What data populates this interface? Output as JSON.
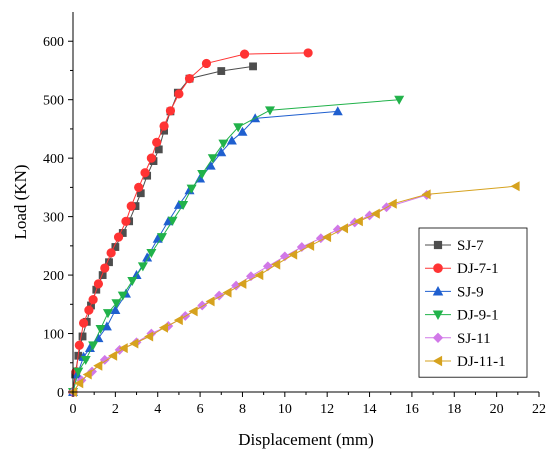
{
  "chart_data": {
    "type": "line",
    "title": "",
    "xlabel": "Displacement (mm)",
    "ylabel": "Load (KN)",
    "xlim": [
      0,
      22
    ],
    "ylim": [
      0,
      650
    ],
    "xticks": [
      0,
      2,
      4,
      6,
      8,
      10,
      12,
      14,
      16,
      18,
      20,
      22
    ],
    "yticks": [
      0,
      100,
      200,
      300,
      400,
      500,
      600
    ],
    "grid": false,
    "legend_position": "bottom-right",
    "series": [
      {
        "name": "SJ-7",
        "color": "#4d4d4d",
        "marker": "square",
        "points": [
          [
            0,
            0
          ],
          [
            0.1,
            30
          ],
          [
            0.25,
            62
          ],
          [
            0.45,
            95
          ],
          [
            0.65,
            120
          ],
          [
            0.85,
            148
          ],
          [
            1.1,
            175
          ],
          [
            1.4,
            200
          ],
          [
            1.7,
            222
          ],
          [
            2.0,
            248
          ],
          [
            2.35,
            272
          ],
          [
            2.65,
            292
          ],
          [
            2.95,
            318
          ],
          [
            3.2,
            340
          ],
          [
            3.5,
            370
          ],
          [
            3.8,
            395
          ],
          [
            4.05,
            415
          ],
          [
            4.3,
            447
          ],
          [
            4.6,
            480
          ],
          [
            4.95,
            512
          ],
          [
            5.5,
            536
          ],
          [
            7.0,
            549
          ],
          [
            8.5,
            557
          ]
        ]
      },
      {
        "name": "DJ-7-1",
        "color": "#ff3333",
        "marker": "circle",
        "points": [
          [
            0,
            0
          ],
          [
            0.15,
            35
          ],
          [
            0.3,
            80
          ],
          [
            0.5,
            118
          ],
          [
            0.75,
            140
          ],
          [
            0.95,
            158
          ],
          [
            1.2,
            185
          ],
          [
            1.5,
            212
          ],
          [
            1.8,
            238
          ],
          [
            2.15,
            265
          ],
          [
            2.5,
            292
          ],
          [
            2.75,
            318
          ],
          [
            3.1,
            350
          ],
          [
            3.4,
            375
          ],
          [
            3.7,
            400
          ],
          [
            3.95,
            427
          ],
          [
            4.3,
            455
          ],
          [
            4.6,
            481
          ],
          [
            5.0,
            510
          ],
          [
            5.5,
            536
          ],
          [
            6.3,
            562
          ],
          [
            8.1,
            578
          ],
          [
            11.1,
            580
          ]
        ]
      },
      {
        "name": "SJ-9",
        "color": "#1f5fcf",
        "marker": "triangle-up",
        "points": [
          [
            0,
            0
          ],
          [
            0.2,
            30
          ],
          [
            0.5,
            60
          ],
          [
            0.8,
            75
          ],
          [
            1.2,
            92
          ],
          [
            1.6,
            112
          ],
          [
            2.0,
            140
          ],
          [
            2.5,
            168
          ],
          [
            3.0,
            200
          ],
          [
            3.5,
            230
          ],
          [
            4.0,
            262
          ],
          [
            4.5,
            292
          ],
          [
            5.0,
            320
          ],
          [
            5.5,
            345
          ],
          [
            6.0,
            365
          ],
          [
            6.5,
            387
          ],
          [
            7.0,
            410
          ],
          [
            7.5,
            430
          ],
          [
            8.0,
            445
          ],
          [
            8.6,
            468
          ],
          [
            12.5,
            480
          ]
        ]
      },
      {
        "name": "DJ-9-1",
        "color": "#21b24a",
        "marker": "triangle-down",
        "points": [
          [
            0,
            0
          ],
          [
            0.25,
            35
          ],
          [
            0.6,
            55
          ],
          [
            0.95,
            80
          ],
          [
            1.3,
            108
          ],
          [
            1.65,
            135
          ],
          [
            2.05,
            152
          ],
          [
            2.35,
            165
          ],
          [
            2.8,
            190
          ],
          [
            3.3,
            215
          ],
          [
            3.7,
            238
          ],
          [
            4.2,
            265
          ],
          [
            4.7,
            293
          ],
          [
            5.2,
            320
          ],
          [
            5.6,
            348
          ],
          [
            6.1,
            373
          ],
          [
            6.6,
            400
          ],
          [
            7.1,
            425
          ],
          [
            7.8,
            453
          ],
          [
            9.3,
            482
          ],
          [
            15.4,
            500
          ]
        ]
      },
      {
        "name": "SJ-11",
        "color": "#d178e8",
        "marker": "diamond",
        "points": [
          [
            0,
            0
          ],
          [
            0.4,
            20
          ],
          [
            0.9,
            35
          ],
          [
            1.5,
            55
          ],
          [
            2.2,
            72
          ],
          [
            3.0,
            85
          ],
          [
            3.7,
            100
          ],
          [
            4.5,
            113
          ],
          [
            5.3,
            130
          ],
          [
            6.1,
            148
          ],
          [
            6.9,
            165
          ],
          [
            7.7,
            182
          ],
          [
            8.4,
            198
          ],
          [
            9.2,
            215
          ],
          [
            10.0,
            232
          ],
          [
            10.8,
            248
          ],
          [
            11.7,
            263
          ],
          [
            12.5,
            278
          ],
          [
            13.3,
            290
          ],
          [
            14.0,
            302
          ],
          [
            14.8,
            316
          ],
          [
            16.7,
            337
          ]
        ]
      },
      {
        "name": "DJ-11-1",
        "color": "#d6a21e",
        "marker": "triangle-left",
        "points": [
          [
            0,
            0
          ],
          [
            0.3,
            15
          ],
          [
            0.7,
            30
          ],
          [
            1.2,
            45
          ],
          [
            1.9,
            62
          ],
          [
            2.4,
            75
          ],
          [
            2.9,
            83
          ],
          [
            3.6,
            95
          ],
          [
            4.3,
            110
          ],
          [
            5.0,
            123
          ],
          [
            5.7,
            138
          ],
          [
            6.5,
            155
          ],
          [
            7.3,
            170
          ],
          [
            8.0,
            185
          ],
          [
            8.8,
            200
          ],
          [
            9.6,
            218
          ],
          [
            10.4,
            235
          ],
          [
            11.2,
            250
          ],
          [
            12.0,
            265
          ],
          [
            12.8,
            280
          ],
          [
            13.5,
            292
          ],
          [
            14.3,
            305
          ],
          [
            15.1,
            322
          ],
          [
            16.7,
            338
          ],
          [
            20.9,
            352
          ]
        ]
      }
    ]
  }
}
